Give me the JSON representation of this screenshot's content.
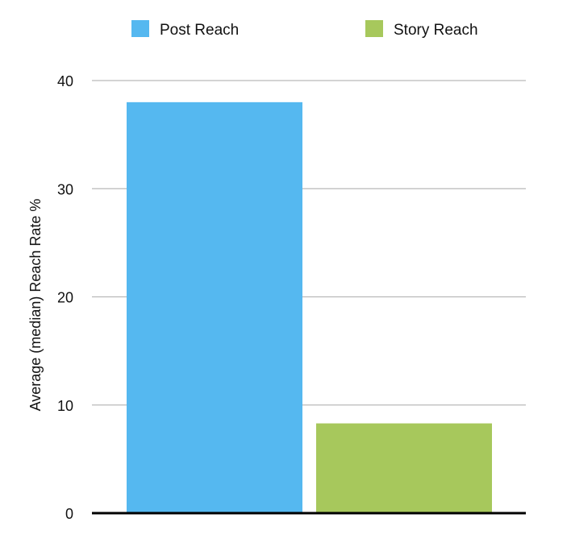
{
  "chart_data": {
    "type": "bar",
    "categories": [
      ""
    ],
    "series": [
      {
        "name": "Post Reach",
        "values": [
          38
        ],
        "color": "#55b8f0"
      },
      {
        "name": "Story Reach",
        "values": [
          8.3
        ],
        "color": "#a7c85c"
      }
    ],
    "ylabel": "Average (median) Reach Rate %",
    "xlabel": "",
    "ylim": [
      0,
      40
    ],
    "yticks": [
      "0",
      "10",
      "20",
      "30",
      "40"
    ],
    "grid": true,
    "legend_position": "top"
  }
}
